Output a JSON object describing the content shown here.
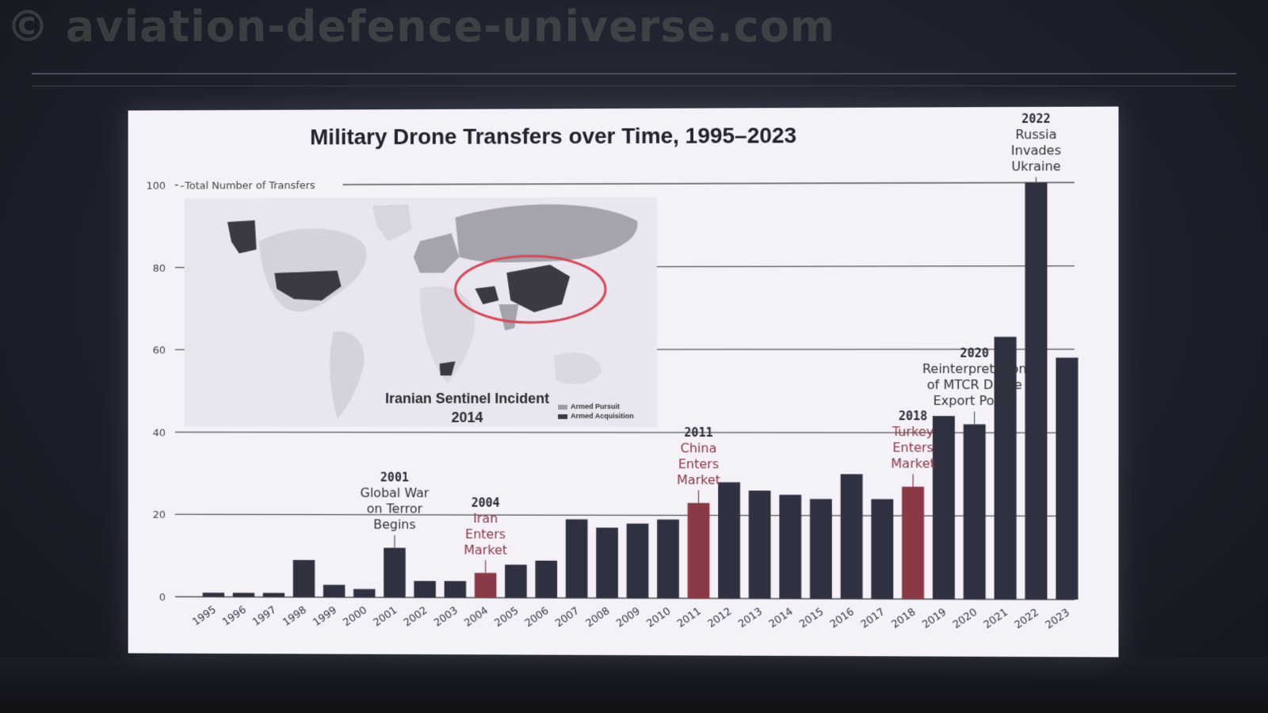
{
  "watermark": "© aviation-defence-universe.com",
  "chart_data": {
    "type": "bar",
    "title": "Military Drone Transfers over Time, 1995–2023",
    "ylabel": "Total Number of Transfers",
    "ylim": [
      0,
      100
    ],
    "yticks": [
      0,
      20,
      40,
      60,
      80,
      100
    ],
    "grid": true,
    "categories": [
      "1995",
      "1996",
      "1997",
      "1998",
      "1999",
      "2000",
      "2001",
      "2002",
      "2003",
      "2004",
      "2005",
      "2006",
      "2007",
      "2008",
      "2009",
      "2010",
      "2011",
      "2012",
      "2013",
      "2014",
      "2015",
      "2016",
      "2017",
      "2018",
      "2019",
      "2020",
      "2021",
      "2022",
      "2023"
    ],
    "values": [
      1,
      1,
      1,
      9,
      3,
      2,
      12,
      4,
      4,
      6,
      8,
      9,
      19,
      17,
      18,
      19,
      23,
      28,
      26,
      25,
      24,
      30,
      24,
      27,
      44,
      42,
      63,
      100,
      58
    ],
    "highlighted": [
      "2004",
      "2011",
      "2018"
    ],
    "colors": {
      "bar": "#2f3040",
      "highlight": "#8a3a46",
      "grid": "#555",
      "annotation_year": "#2a2a33",
      "annotation_text_red": "#8a3a46"
    },
    "annotations": [
      {
        "year": "2001",
        "title": "2001",
        "lines": [
          "Global War",
          "on Terror",
          "Begins"
        ],
        "color": "dark"
      },
      {
        "year": "2004",
        "title": "2004",
        "lines": [
          "Iran",
          "Enters",
          "Market"
        ],
        "color": "red"
      },
      {
        "year": "2011",
        "title": "2011",
        "lines": [
          "China",
          "Enters",
          "Market"
        ],
        "color": "red"
      },
      {
        "year": "2018",
        "title": "2018",
        "lines": [
          "Turkey",
          "Enters",
          "Market"
        ],
        "color": "red"
      },
      {
        "year": "2020",
        "title": "2020",
        "lines": [
          "Reinterpretation",
          "of MTCR Drone",
          "Export Policy"
        ],
        "color": "dark"
      },
      {
        "year": "2022",
        "title": "2022",
        "lines": [
          "Russia",
          "Invades",
          "Ukraine"
        ],
        "color": "dark"
      }
    ],
    "inset_map": {
      "caption_lines": [
        "Iranian Sentinel Incident",
        "2014"
      ],
      "legend": [
        "Armed Pursuit",
        "Armed Acquisition"
      ],
      "legend_colors": [
        "#9a9aa0",
        "#3a3a44"
      ]
    }
  }
}
